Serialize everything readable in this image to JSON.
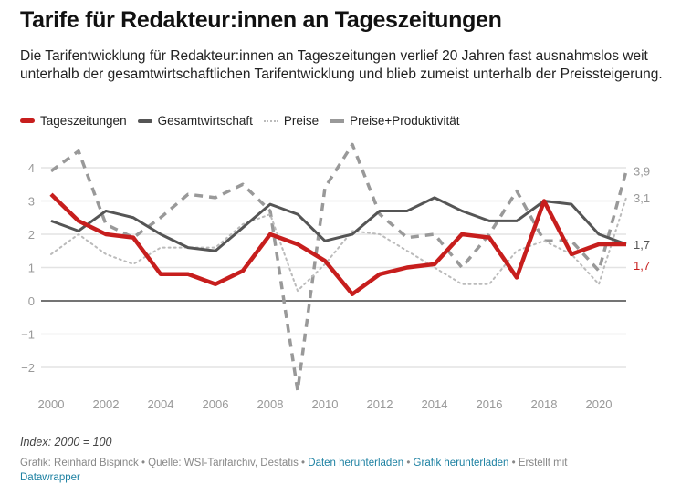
{
  "header": {
    "title": "Tarife für Redakteur:innen an Tageszeitungen",
    "description": "Die Tarifentwicklung für Redakteur:innen an Tageszeitungen verlief 20 Jahren fast ausnahmslos weit unterhalb der gesamtwirtschaftlichen Tarifentwicklung und blieb zumeist unterhalb der Preissteigerung."
  },
  "legend": [
    {
      "label": "Tageszeitungen",
      "color": "#c71e1d",
      "style": "solid"
    },
    {
      "label": "Gesamtwirtschaft",
      "color": "#555555",
      "style": "solid"
    },
    {
      "label": "Preise",
      "color": "#bbbbbb",
      "style": "dotted"
    },
    {
      "label": "Preise+Produktivität",
      "color": "#999999",
      "style": "dashed"
    }
  ],
  "chart_data": {
    "type": "line",
    "title": "Tarife für Redakteur:innen an Tageszeitungen",
    "xlabel": "",
    "ylabel": "",
    "x": [
      2000,
      2001,
      2002,
      2003,
      2004,
      2005,
      2006,
      2007,
      2008,
      2009,
      2010,
      2011,
      2012,
      2013,
      2014,
      2015,
      2016,
      2017,
      2018,
      2019,
      2020,
      2021
    ],
    "x_ticks": [
      "2000",
      "2002",
      "2004",
      "2006",
      "2008",
      "2010",
      "2012",
      "2014",
      "2016",
      "2018",
      "2020"
    ],
    "y_ticks": [
      "4",
      "3",
      "2",
      "1",
      "0",
      "−1",
      "−2"
    ],
    "ylim": [
      -2.8,
      4.8
    ],
    "grid": true,
    "legend_position": "top-left",
    "series": [
      {
        "name": "Tageszeitungen",
        "color": "#c71e1d",
        "style": "solid",
        "values": [
          3.2,
          2.4,
          2.0,
          1.9,
          0.8,
          0.8,
          0.5,
          0.9,
          2.0,
          1.7,
          1.2,
          0.2,
          0.8,
          1.0,
          1.1,
          2.0,
          1.9,
          0.7,
          3.0,
          1.4,
          1.7,
          1.7
        ],
        "end_label": "1,7"
      },
      {
        "name": "Gesamtwirtschaft",
        "color": "#555555",
        "style": "solid",
        "values": [
          2.4,
          2.1,
          2.7,
          2.5,
          2.0,
          1.6,
          1.5,
          2.2,
          2.9,
          2.6,
          1.8,
          2.0,
          2.7,
          2.7,
          3.1,
          2.7,
          2.4,
          2.4,
          3.0,
          2.9,
          2.0,
          1.7
        ],
        "end_label": "1,7"
      },
      {
        "name": "Preise",
        "color": "#bbbbbb",
        "style": "dotted",
        "values": [
          1.4,
          2.0,
          1.4,
          1.1,
          1.6,
          1.6,
          1.6,
          2.3,
          2.6,
          0.3,
          1.1,
          2.1,
          2.0,
          1.5,
          1.0,
          0.5,
          0.5,
          1.5,
          1.8,
          1.4,
          0.5,
          3.1
        ],
        "end_label": "3,1"
      },
      {
        "name": "Preise+Produktivität",
        "color": "#999999",
        "style": "dashed",
        "values": [
          3.9,
          4.5,
          2.3,
          1.9,
          2.5,
          3.2,
          3.1,
          3.5,
          2.7,
          -2.7,
          3.4,
          4.7,
          2.6,
          1.9,
          2.0,
          1.0,
          2.0,
          3.3,
          1.8,
          1.8,
          0.9,
          3.9
        ],
        "end_label": "3,9"
      }
    ]
  },
  "notes": "Index: 2000 = 100",
  "footer": {
    "credit": "Grafik: Reinhard Bispinck",
    "source": "Quelle: WSI-Tarifarchiv, Destatis",
    "sep": " • ",
    "link_data": "Daten herunterladen",
    "link_graphic": "Grafik herunterladen",
    "created_with": "Erstellt mit",
    "link_datawrapper": "Datawrapper"
  }
}
